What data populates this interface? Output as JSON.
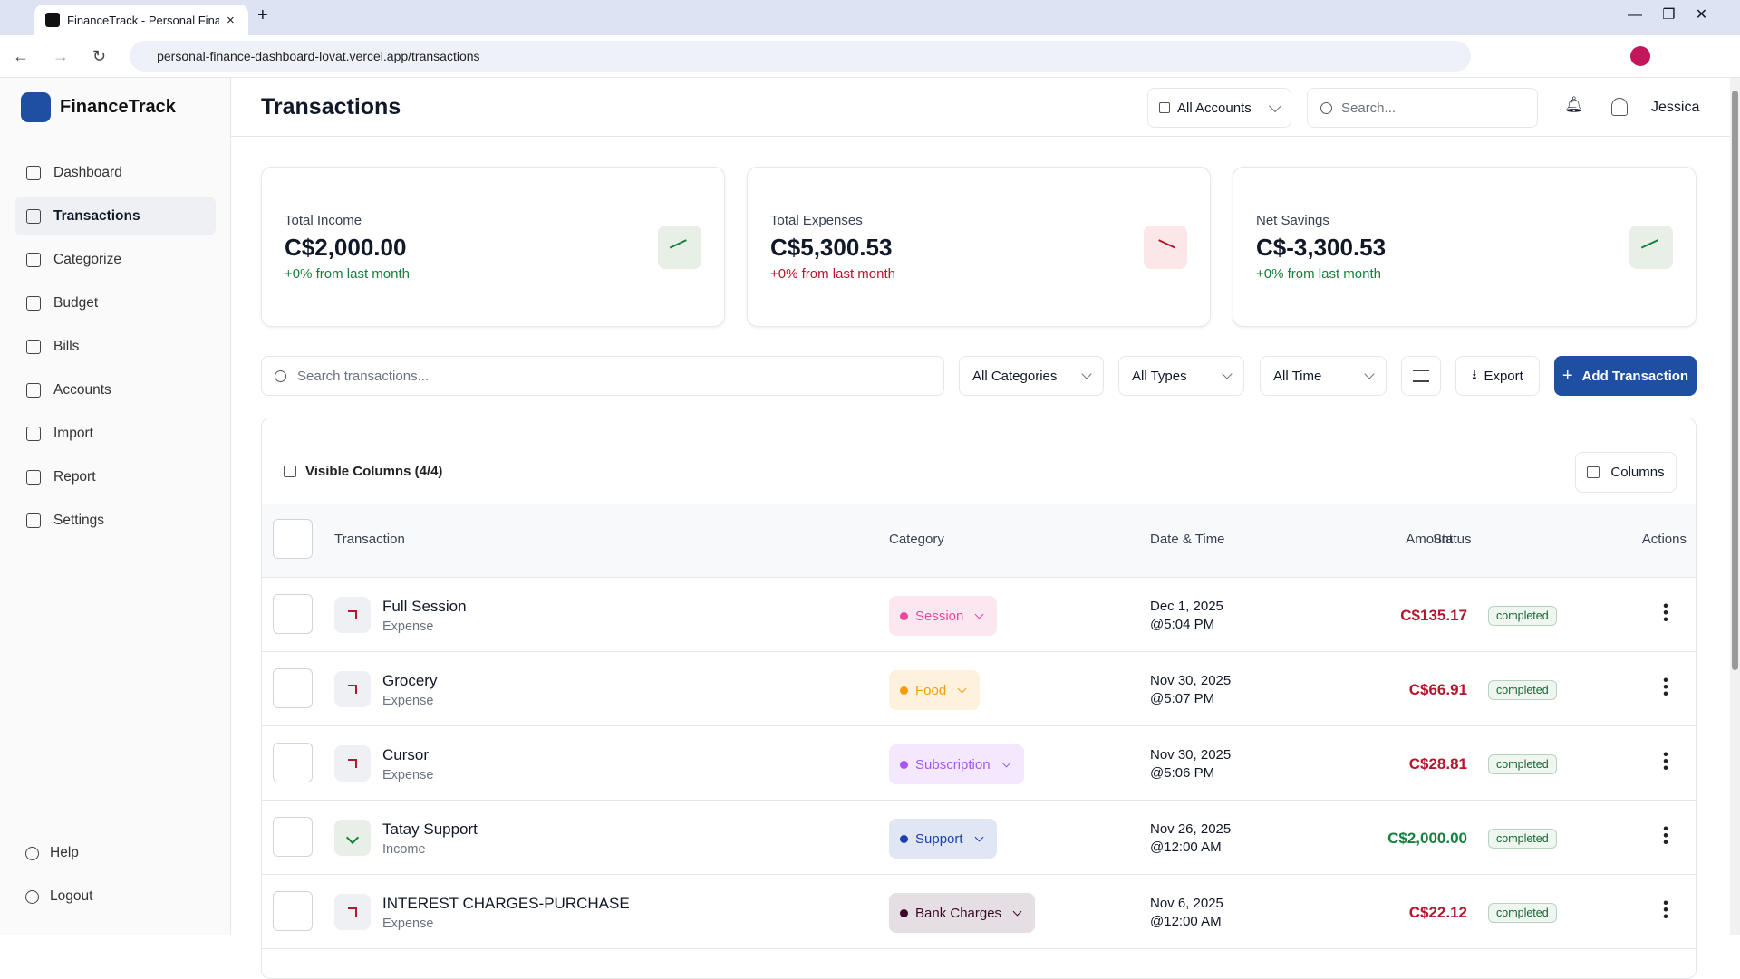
{
  "browser": {
    "tab_title": "FinanceTrack - Personal Finance",
    "url": "personal-finance-dashboard-lovat.vercel.app/transactions"
  },
  "sidebar": {
    "brand": "FinanceTrack",
    "nav": [
      "Dashboard",
      "Transactions",
      "Categorize",
      "Budget",
      "Bills",
      "Accounts",
      "Import",
      "Report",
      "Settings"
    ],
    "active": 1,
    "footer": [
      "Help",
      "Logout"
    ]
  },
  "header": {
    "title": "Transactions",
    "account_filter": "All Accounts",
    "search_placeholder": "Search...",
    "user": "Jessica"
  },
  "stats": [
    {
      "label": "Total Income",
      "value": "C$2,000.00",
      "change": "+0% from last month",
      "color": "#15803d",
      "icon_bg": "#e7efe6"
    },
    {
      "label": "Total Expenses",
      "value": "C$5,300.53",
      "change": "+0% from last month",
      "color": "#b4162c",
      "icon_bg": "#fbe6e8"
    },
    {
      "label": "Net Savings",
      "value": "C$-3,300.53",
      "change": "+0% from last month",
      "color": "#15803d",
      "icon_bg": "#e7efe6"
    }
  ],
  "toolbar": {
    "search_placeholder": "Search transactions...",
    "filters": [
      "All Categories",
      "All Types",
      "All Time"
    ],
    "export": "Export",
    "add": "Add Transaction"
  },
  "table": {
    "visible_columns": "Visible Columns (4/4)",
    "columns_button": "Columns",
    "headers": [
      "Transaction",
      "Category",
      "Date & Time",
      "Amount",
      "Status",
      "Actions"
    ],
    "rows": [
      {
        "name": "Full Session",
        "type": "Expense",
        "category": "Session",
        "category_color": "#ec4899",
        "date": "Dec 1, 2025",
        "time": "@5:04 PM",
        "amount": "C$135.17",
        "color": "#b4162c",
        "status": "completed"
      },
      {
        "name": "Grocery",
        "type": "Expense",
        "category": "Food",
        "category_color": "#f59e0b",
        "date": "Nov 30, 2025",
        "time": "@5:07 PM",
        "amount": "C$66.91",
        "color": "#b4162c",
        "status": "completed"
      },
      {
        "name": "Cursor",
        "type": "Expense",
        "category": "Subscription",
        "category_color": "#a855f7",
        "date": "Nov 30, 2025",
        "time": "@5:06 PM",
        "amount": "C$28.81",
        "color": "#b4162c",
        "status": "completed"
      },
      {
        "name": "Tatay Support",
        "type": "Income",
        "category": "Support",
        "category_color": "#1e40af",
        "date": "Nov 26, 2025",
        "time": "@12:00 AM",
        "amount": "C$2,000.00",
        "color": "#15803d",
        "status": "completed"
      },
      {
        "name": "INTEREST CHARGES-PURCHASE",
        "type": "Expense",
        "category": "Bank Charges",
        "category_color": "#3b0a2a",
        "date": "Nov 6, 2025",
        "time": "@12:00 AM",
        "amount": "C$22.12",
        "color": "#b4162c",
        "status": "completed"
      }
    ]
  }
}
